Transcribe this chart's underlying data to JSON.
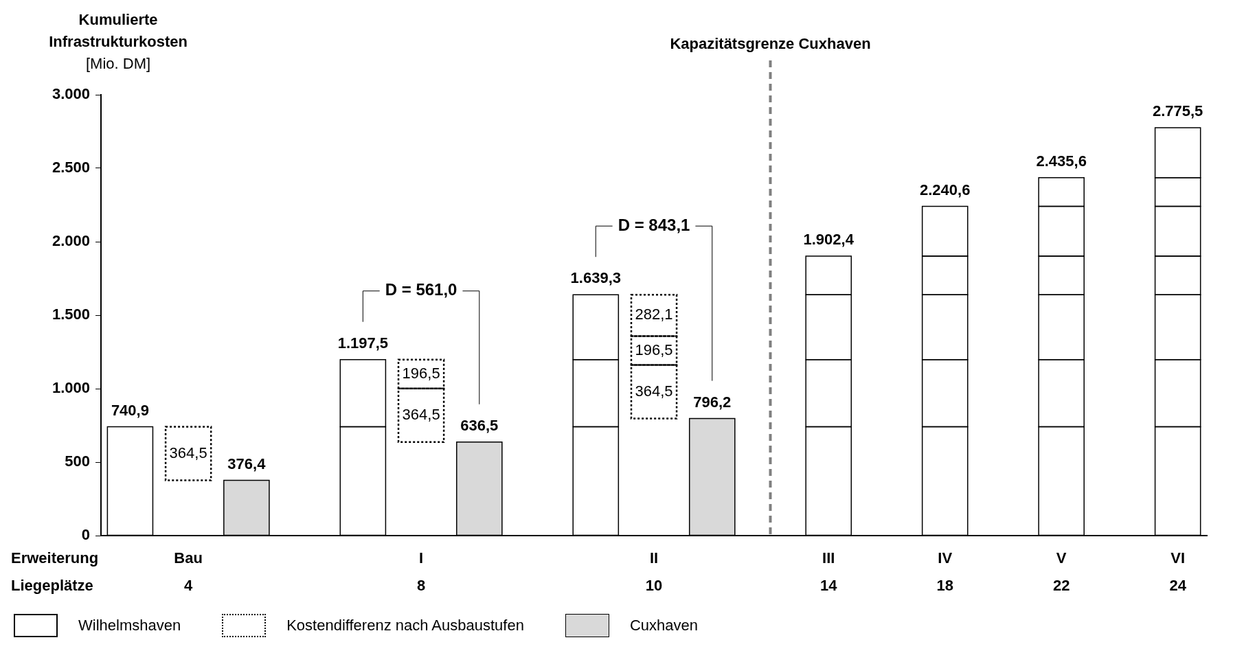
{
  "chart_data": {
    "type": "bar",
    "stacked": true,
    "ylabel": "Kumulierte Infrastrukturkosten [Mio. DM]",
    "xlabel": "Erweiterung\nLiegeplätze",
    "categories": [
      null,
      "Bau\n4",
      null,
      null,
      null,
      "I\n8",
      null,
      null,
      null,
      "II\n10",
      null,
      null,
      "III\n14",
      null,
      "IV\n18",
      null,
      "V\n22",
      null,
      "VI\n24"
    ],
    "ylim": [
      0,
      3000
    ],
    "yticks": [
      0,
      500,
      {
        "value": 1000,
        "label": "1.000"
      },
      {
        "value": 1500,
        "label": "1.500"
      },
      {
        "value": 2000,
        "label": "2.000"
      },
      {
        "value": 2500,
        "label": "2.500"
      },
      {
        "value": 3000,
        "label": "3.000"
      }
    ],
    "series": [
      {
        "name": "Wilhelmshaven",
        "color": "#000000",
        "line_style": "solid",
        "values": [
          740.9,
          null,
          null,
          null,
          740.9,
          null,
          null,
          null,
          740.9,
          null,
          null,
          null,
          740.9,
          null,
          740.9,
          null,
          740.9,
          null,
          740.9
        ]
      },
      {
        "color": "#000000",
        "line_style": "solid",
        "values": [
          null,
          null,
          null,
          null,
          456.6,
          null,
          null,
          null,
          456.6,
          null,
          null,
          null,
          456.6,
          null,
          456.6,
          null,
          456.6,
          null,
          456.6
        ]
      },
      {
        "color": "#000000",
        "line_style": "solid",
        "values": [
          null,
          null,
          null,
          null,
          null,
          null,
          null,
          null,
          441.8,
          null,
          null,
          null,
          441.8,
          null,
          441.8,
          null,
          441.8,
          null,
          441.8
        ]
      },
      {
        "color": "#000000",
        "line_style": "solid",
        "values": [
          null,
          null,
          null,
          null,
          null,
          null,
          null,
          null,
          null,
          null,
          null,
          null,
          263.1,
          null,
          263.1,
          null,
          263.1,
          null,
          263.1
        ]
      },
      {
        "color": "#000000",
        "line_style": "solid",
        "values": [
          null,
          null,
          null,
          null,
          null,
          null,
          null,
          null,
          null,
          null,
          null,
          null,
          null,
          null,
          338.2,
          null,
          338.2,
          null,
          338.2
        ]
      },
      {
        "color": "#000000",
        "line_style": "solid",
        "values": [
          null,
          null,
          null,
          null,
          null,
          null,
          null,
          null,
          null,
          null,
          null,
          null,
          null,
          null,
          null,
          null,
          195.0,
          null,
          195.0
        ]
      },
      {
        "color": "#000000",
        "line_style": "solid",
        "values": [
          null,
          null,
          null,
          null,
          null,
          null,
          null,
          null,
          null,
          null,
          null,
          null,
          null,
          null,
          null,
          null,
          null,
          null,
          339.9
        ]
      },
      {
        "name": "Kostendifferenz nach Ausbaustufen",
        "color": "#000000",
        "line_style": "dotted",
        "values": [
          null,
          364.5,
          null,
          null,
          null,
          364.5,
          null,
          null,
          null,
          364.5,
          null,
          null,
          null,
          null,
          null,
          null,
          null,
          null,
          null
        ],
        "base": [
          null,
          376.4,
          null,
          null,
          null,
          636.5,
          null,
          null,
          null,
          796.2,
          null,
          null,
          null,
          null,
          null,
          null,
          null,
          null,
          null
        ],
        "value_labels": [
          null,
          "364,5",
          null,
          null,
          null,
          "364,5",
          null,
          null,
          null,
          "364,5",
          null,
          null,
          null,
          null,
          null,
          null,
          null,
          null,
          null
        ]
      },
      {
        "color": "#000000",
        "line_style": "dotted",
        "values": [
          null,
          null,
          null,
          null,
          null,
          196.5,
          null,
          null,
          null,
          196.5,
          null,
          null,
          null,
          null,
          null,
          null,
          null,
          null,
          null
        ],
        "base": [
          null,
          null,
          null,
          null,
          null,
          1001.0,
          null,
          null,
          null,
          1160.7,
          null,
          null,
          null,
          null,
          null,
          null,
          null,
          null,
          null
        ],
        "value_labels": [
          null,
          null,
          null,
          null,
          null,
          "196,5",
          null,
          null,
          null,
          "196,5",
          null,
          null,
          null,
          null,
          null,
          null,
          null,
          null,
          null
        ]
      },
      {
        "color": "#000000",
        "line_style": "dotted",
        "values": [
          null,
          null,
          null,
          null,
          null,
          null,
          null,
          null,
          null,
          282.1,
          null,
          null,
          null,
          null,
          null,
          null,
          null,
          null,
          null
        ],
        "base": [
          null,
          null,
          null,
          null,
          null,
          null,
          null,
          null,
          null,
          1357.2,
          null,
          null,
          null,
          null,
          null,
          null,
          null,
          null,
          null
        ],
        "value_labels": [
          null,
          null,
          null,
          null,
          null,
          null,
          null,
          null,
          null,
          "282,1",
          null,
          null,
          null,
          null,
          null,
          null,
          null,
          null,
          null
        ]
      },
      {
        "name": "Cuxhaven",
        "color": "#d9d9d9",
        "values": [
          null,
          null,
          376.4,
          null,
          null,
          null,
          636.5,
          null,
          null,
          null,
          796.2,
          null,
          null,
          null,
          null,
          null,
          null,
          null,
          null
        ],
        "value_labels": [
          null,
          null,
          "376,4",
          null,
          null,
          null,
          "636,5",
          null,
          null,
          null,
          "796,2",
          null,
          null,
          null,
          null,
          null,
          null,
          null,
          null
        ]
      }
    ],
    "totals": [
      "740,9",
      null,
      null,
      null,
      "1.197,5",
      null,
      null,
      null,
      "1.639,3",
      null,
      null,
      null,
      "1.902,4",
      null,
      "2.240,6",
      null,
      "2.435,6",
      null,
      "2.775,5"
    ],
    "annotations": [
      "D = 561,0",
      "D = 843,1",
      "Kapazitätsgrenze Cuxhaven"
    ],
    "legend": "bottom left"
  }
}
